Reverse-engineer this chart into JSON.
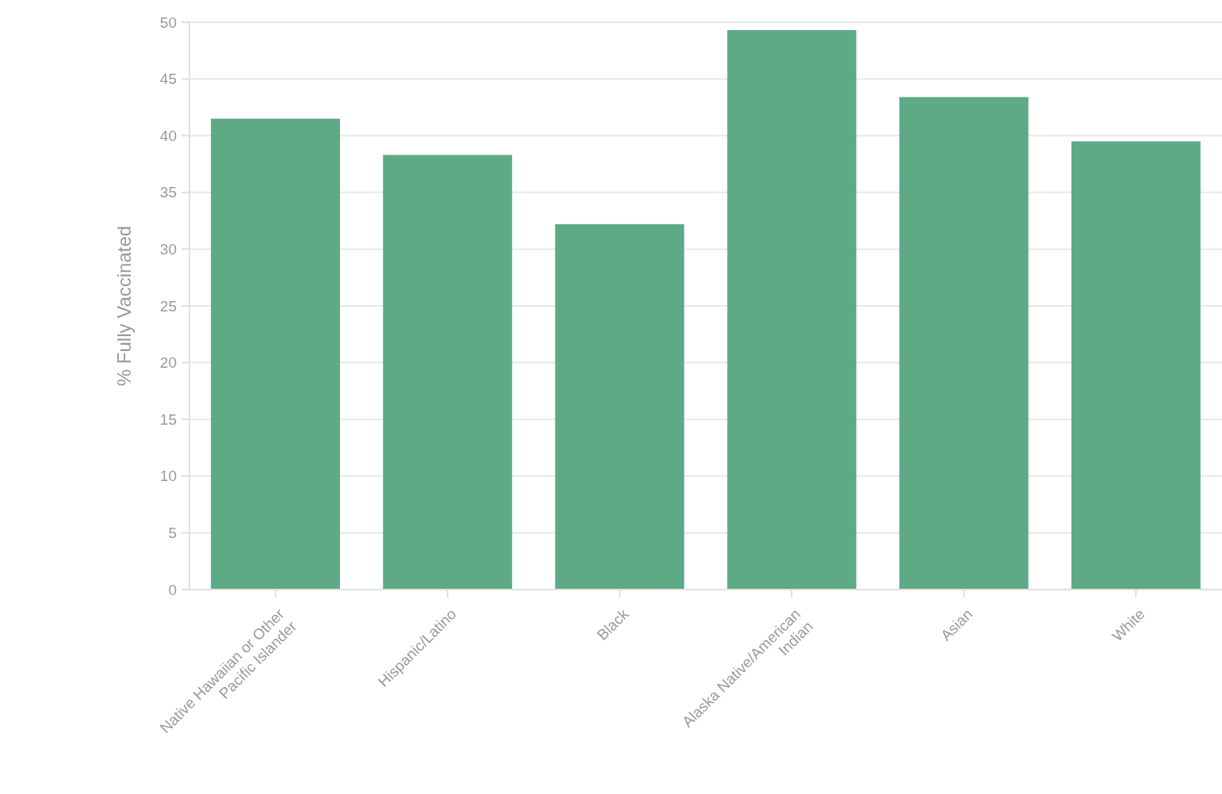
{
  "chart_data": {
    "type": "bar",
    "ylabel": "% Fully Vaccinated",
    "categories": [
      "Native Hawaiian or Other Pacific Islander",
      "Hispanic/Latino",
      "Black",
      "Alaska Native/American Indian",
      "Asian",
      "White"
    ],
    "values": [
      41.5,
      38.3,
      32.2,
      49.3,
      43.4,
      39.5
    ],
    "color": "#5eaa87",
    "ylim": [
      0,
      50
    ],
    "yticks": [
      0,
      5,
      10,
      15,
      20,
      25,
      30,
      35,
      40,
      45,
      50
    ],
    "grid": "y"
  }
}
